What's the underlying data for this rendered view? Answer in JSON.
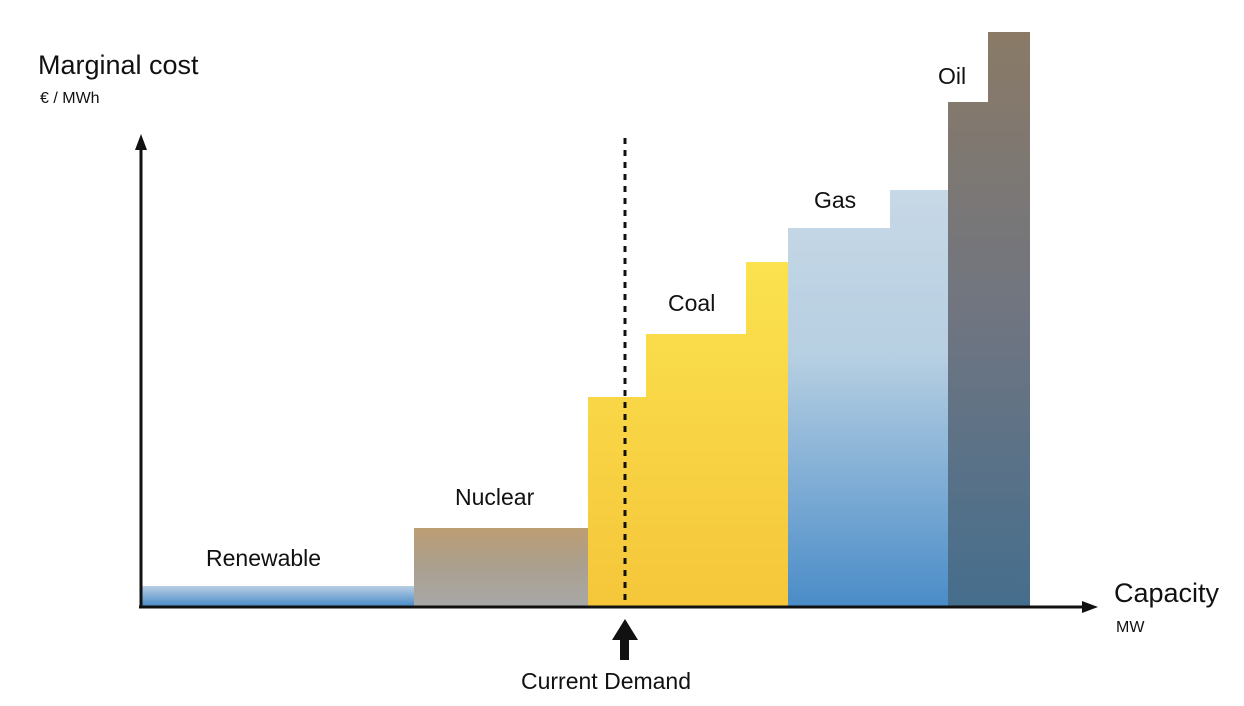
{
  "diagram": {
    "y_axis": {
      "label": "Marginal cost",
      "unit": "€ / MWh"
    },
    "x_axis": {
      "label": "Capacity",
      "unit": "MW"
    },
    "demand_label": "Current Demand",
    "segments": [
      {
        "name": "Renewable",
        "colors": {
          "top": "#b9cfe4",
          "bottom": "#4a8cc8"
        }
      },
      {
        "name": "Nuclear",
        "colors": {
          "top": "#bd9e73",
          "bottom": "#a8a8a8"
        }
      },
      {
        "name": "Coal",
        "colors": {
          "top": "#fbe24e",
          "bottom": "#f5c63a"
        }
      },
      {
        "name": "Gas",
        "colors": {
          "top": "#c7d8e6",
          "bottom": "#4a8cc8"
        }
      },
      {
        "name": "Oil",
        "colors": {
          "top": "#8a7a66",
          "bottom": "#456e8d"
        }
      }
    ]
  }
}
